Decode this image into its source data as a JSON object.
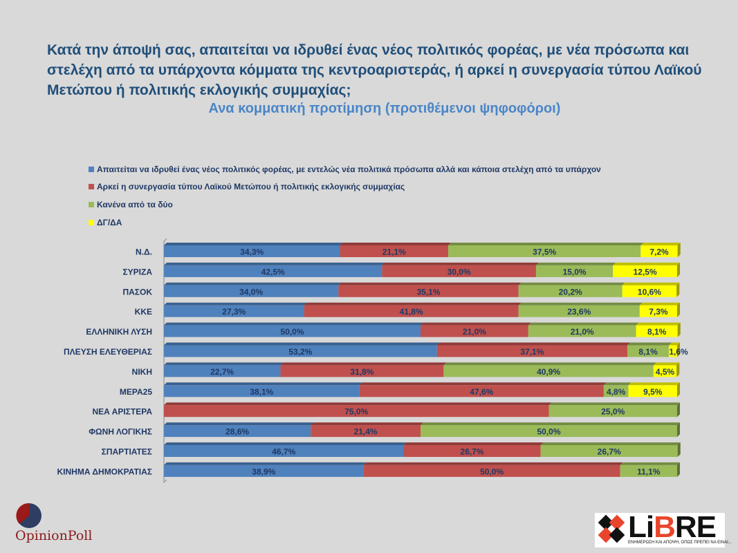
{
  "chart_data": {
    "type": "bar",
    "orientation": "horizontal",
    "stacked": true,
    "title": "Κατά την άποψή σας, απαιτείται να ιδρυθεί ένας νέος πολιτικός φορέας, με νέα πρόσωπα και στελέχη από τα υπάρχοντα κόμματα της κεντροαριστεράς, ή αρκεί η συνεργασία τύπου  Λαϊκού  Μετώπου ή πολιτικής εκλογικής συμμαχίας;",
    "subtitle": "Ανα κομματική προτίμηση (προτιθέμενοι ψηφοφόροι)",
    "legend_position": "top-left",
    "xlim": [
      0,
      100
    ],
    "categories": [
      "Ν.Δ.",
      "ΣΥΡΙΖΑ",
      "ΠΑΣΟΚ",
      "ΚΚΕ",
      "ΕΛΛΗΝΙΚΗ ΛΥΣΗ",
      "ΠΛΕΥΣΗ ΕΛΕΥΘΕΡΙΑΣ",
      "ΝΙΚΗ",
      "ΜΕΡΑ25",
      "ΝΕΑ ΑΡΙΣΤΕΡΑ",
      "ΦΩΝΗ ΛΟΓΙΚΗΣ",
      "ΣΠΑΡΤΙΑΤΕΣ",
      "ΚΙΝΗΜΑ ΔΗΜΟΚΡΑΤΙΑΣ"
    ],
    "series": [
      {
        "name": "Απαιτείται να ιδρυθεί ένας νέος πολιτικός φορέας, με εντελώς νέα πολιτικά πρόσωπα αλλά και κάποια στελέχη από τα υπάρχον",
        "color": "#4f81bd",
        "values": [
          34.3,
          42.5,
          34.0,
          27.3,
          50.0,
          53.2,
          22.7,
          38.1,
          0,
          28.6,
          46.7,
          38.9
        ]
      },
      {
        "name": "Αρκεί η συνεργασία τύπου  Λαϊκού Μετώπου ή πολιτικής εκλογικής συμμαχίας",
        "color": "#c0504d",
        "values": [
          21.1,
          30.0,
          35.1,
          41.8,
          21.0,
          37.1,
          31.8,
          47.6,
          75.0,
          21.4,
          26.7,
          50.0
        ]
      },
      {
        "name": "Κανένα από τα δύο",
        "color": "#9bbb59",
        "values": [
          37.5,
          15.0,
          20.2,
          23.6,
          21.0,
          8.1,
          40.9,
          4.8,
          25.0,
          50.0,
          26.7,
          11.1
        ]
      },
      {
        "name": "ΔΓ/ΔΑ",
        "color": "#ffff00",
        "values": [
          7.2,
          12.5,
          10.6,
          7.3,
          8.1,
          1.6,
          4.5,
          9.5,
          0,
          0,
          0,
          0
        ]
      }
    ]
  },
  "logos": {
    "left": "OpinionPoll",
    "right": "LiBRE",
    "right_tagline": "ΕΝΗΜΕΡΩΣΗ ΚΑΙ ΑΠΟΨΗ, ΟΠΩΣ ΠΡΕΠΕΙ ΝΑ ΕΙΝΑΙ..."
  }
}
